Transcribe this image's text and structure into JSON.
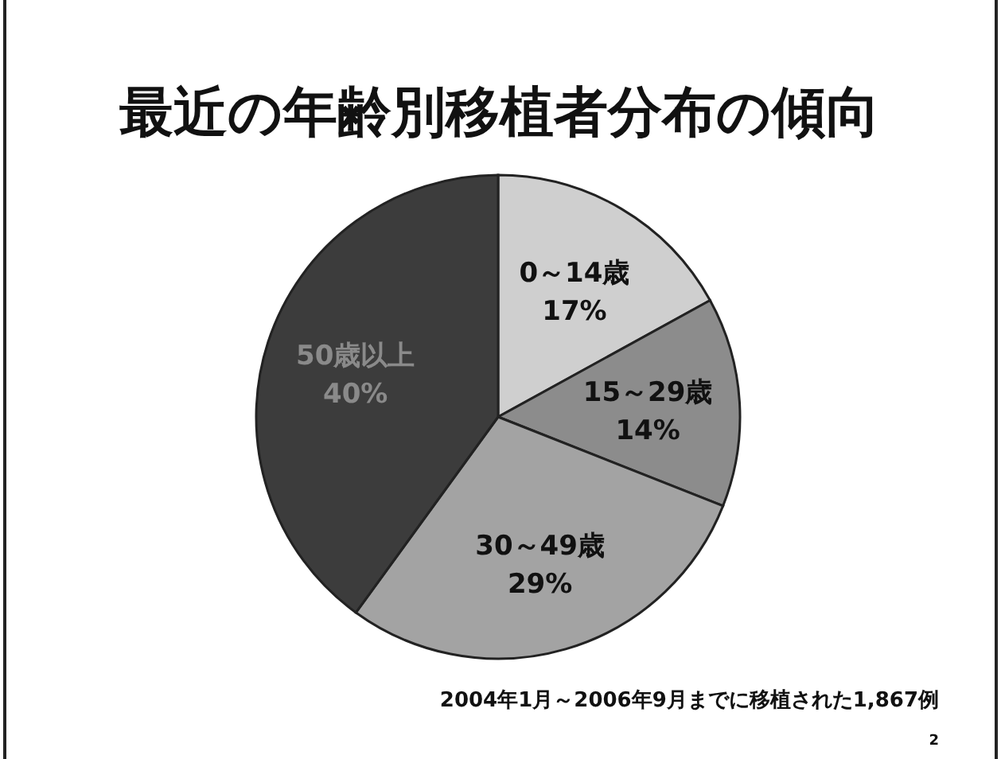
{
  "chart_data": {
    "type": "pie",
    "title": "最近の年齢別移植者分布の傾向",
    "categories": [
      "0～14歳",
      "15～29歳",
      "30～49歳",
      "50歳以上"
    ],
    "values": [
      17,
      14,
      29,
      40
    ],
    "colors": [
      "#cfcfcf",
      "#8c8c8c",
      "#a3a3a3",
      "#3c3c3c"
    ],
    "value_labels": [
      "17%",
      "14%",
      "29%",
      "40%"
    ],
    "annotations": [
      "2004年1月～2006年9月までに移植された1,867例",
      "2"
    ]
  }
}
